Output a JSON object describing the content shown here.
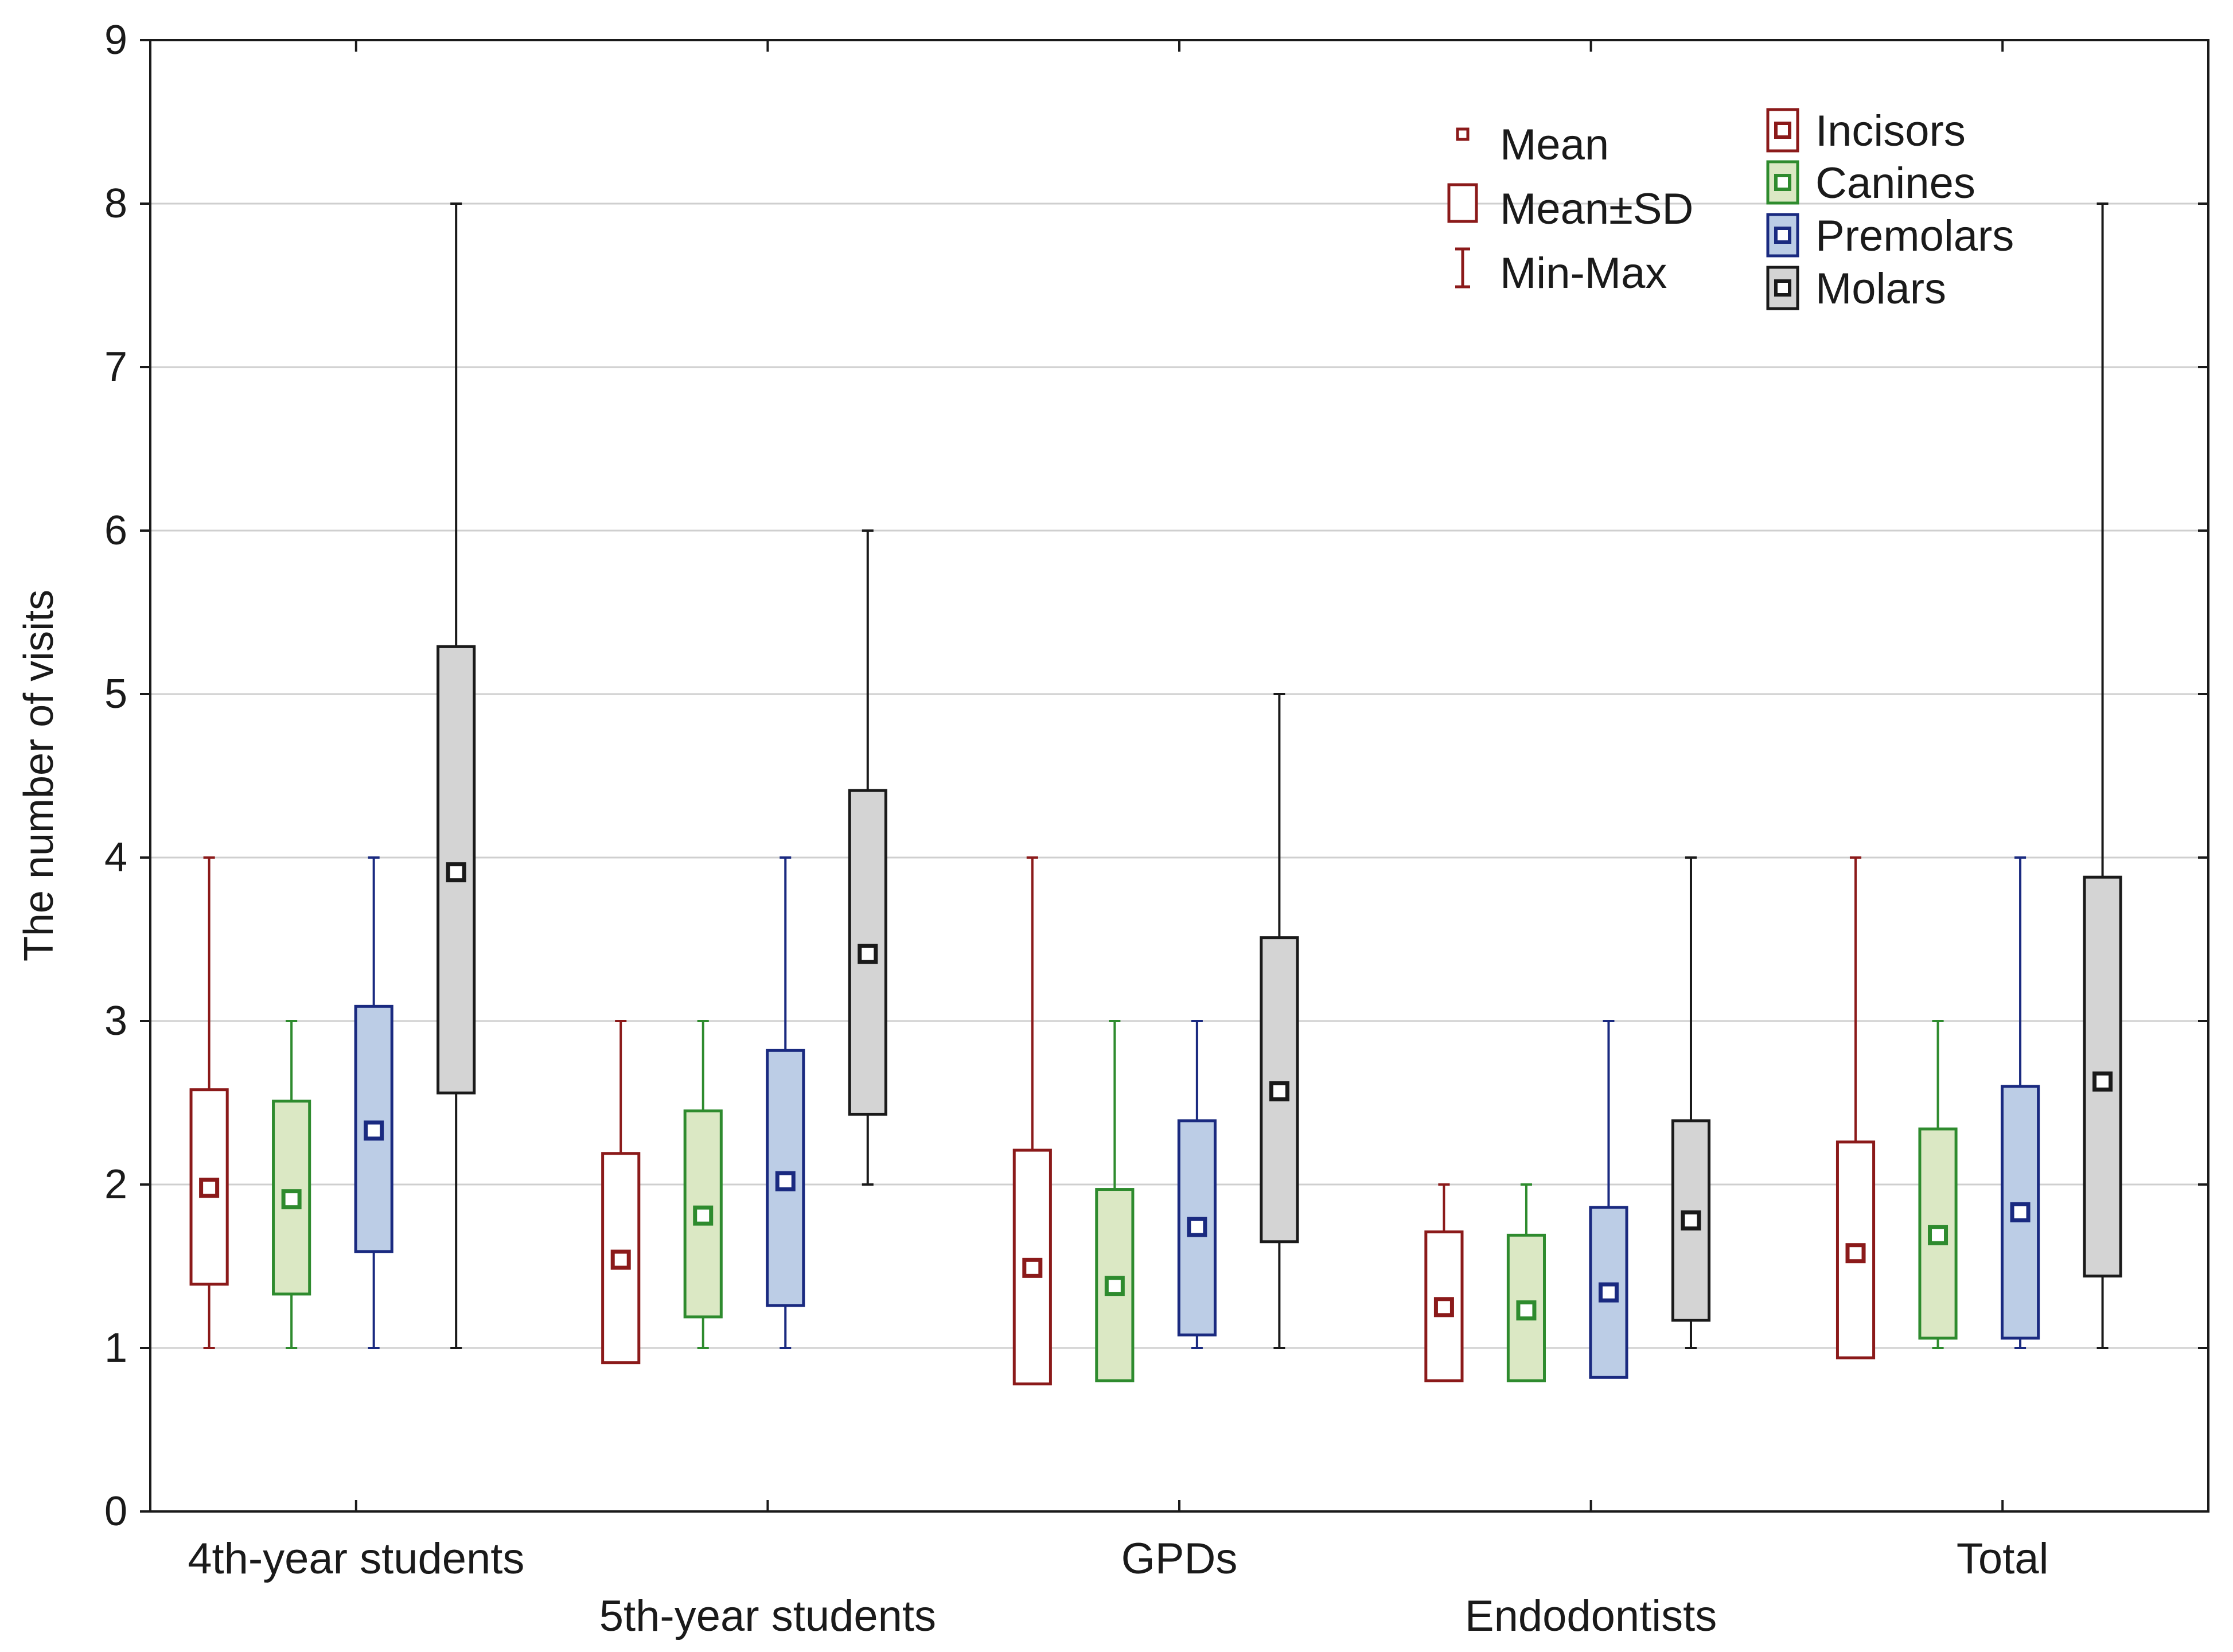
{
  "chart_data": {
    "type": "box",
    "title": "",
    "xlabel": "",
    "ylabel": "The number of visits",
    "ylim": [
      0,
      9
    ],
    "yticks": [
      "0",
      "1",
      "2",
      "3",
      "4",
      "5",
      "6",
      "7",
      "8",
      "9"
    ],
    "grid": true,
    "legend_position": "top-right",
    "legend_stats": [
      "Mean",
      "Mean±SD",
      "Min-Max"
    ],
    "categories": [
      "4th-year students",
      "5th-year students",
      "GPDs",
      "Endodontists",
      "Total"
    ],
    "series": [
      {
        "name": "Incisors",
        "stroke": "#8b1a1a",
        "fill": "#ffffff",
        "mean": [
          1.98,
          1.54,
          1.49,
          1.25,
          1.58
        ],
        "sd_low": [
          1.39,
          0.91,
          0.78,
          0.8,
          0.94
        ],
        "sd_high": [
          2.58,
          2.19,
          2.21,
          1.71,
          2.26
        ],
        "min": [
          1,
          1,
          1,
          1,
          1
        ],
        "max": [
          4,
          3,
          4,
          2,
          4
        ]
      },
      {
        "name": "Canines",
        "stroke": "#2e8b2e",
        "fill": "#dbe8c4",
        "mean": [
          1.91,
          1.81,
          1.38,
          1.23,
          1.69
        ],
        "sd_low": [
          1.33,
          1.19,
          0.8,
          0.8,
          1.06
        ],
        "sd_high": [
          2.51,
          2.45,
          1.97,
          1.69,
          2.34
        ],
        "min": [
          1,
          1,
          1,
          1,
          1
        ],
        "max": [
          3,
          3,
          3,
          2,
          3
        ]
      },
      {
        "name": "Premolars",
        "stroke": "#1a2a80",
        "fill": "#bccde6",
        "mean": [
          2.33,
          2.02,
          1.74,
          1.34,
          1.83
        ],
        "sd_low": [
          1.59,
          1.26,
          1.08,
          0.82,
          1.06
        ],
        "sd_high": [
          3.09,
          2.82,
          2.39,
          1.86,
          2.6
        ],
        "min": [
          1,
          1,
          1,
          1,
          1
        ],
        "max": [
          4,
          4,
          3,
          3,
          4
        ]
      },
      {
        "name": "Molars",
        "stroke": "#1a1a1a",
        "fill": "#d4d4d4",
        "mean": [
          3.91,
          3.41,
          2.57,
          1.78,
          2.63
        ],
        "sd_low": [
          2.56,
          2.43,
          1.65,
          1.17,
          1.44
        ],
        "sd_high": [
          5.29,
          4.41,
          3.51,
          2.39,
          3.88
        ],
        "min": [
          1,
          2,
          1,
          1,
          1
        ],
        "max": [
          8,
          6,
          5,
          4,
          8
        ]
      }
    ]
  }
}
